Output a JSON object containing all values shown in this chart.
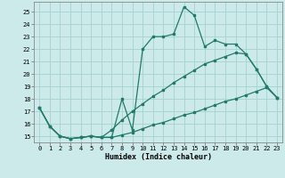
{
  "bg_color": "#cceaea",
  "line_color": "#217a6a",
  "grid_color": "#aad4d4",
  "xlabel": "Humidex (Indice chaleur)",
  "xlim": [
    -0.5,
    23.5
  ],
  "ylim": [
    14.5,
    25.8
  ],
  "yticks": [
    15,
    16,
    17,
    18,
    19,
    20,
    21,
    22,
    23,
    24,
    25
  ],
  "xticks": [
    0,
    1,
    2,
    3,
    4,
    5,
    6,
    7,
    8,
    9,
    10,
    11,
    12,
    13,
    14,
    15,
    16,
    17,
    18,
    19,
    20,
    21,
    22,
    23
  ],
  "line1_x": [
    0,
    1,
    2,
    3,
    4,
    5,
    6,
    7,
    8,
    9,
    10,
    11,
    12,
    13,
    14,
    15,
    16,
    17,
    18,
    19,
    20,
    21,
    22,
    23
  ],
  "line1_y": [
    17.3,
    15.8,
    15.0,
    14.8,
    14.9,
    15.0,
    14.9,
    14.9,
    18.0,
    15.5,
    22.0,
    23.0,
    23.0,
    23.2,
    25.4,
    24.7,
    22.2,
    22.7,
    22.4,
    22.4,
    21.6,
    20.4,
    19.0,
    18.1
  ],
  "line2_x": [
    0,
    1,
    2,
    3,
    4,
    5,
    6,
    7,
    8,
    9,
    10,
    11,
    12,
    13,
    14,
    15,
    16,
    17,
    18,
    19,
    20,
    21,
    22,
    23
  ],
  "line2_y": [
    17.3,
    15.8,
    15.0,
    14.8,
    14.9,
    15.0,
    14.9,
    15.5,
    16.3,
    17.0,
    17.6,
    18.2,
    18.7,
    19.3,
    19.8,
    20.3,
    20.8,
    21.1,
    21.4,
    21.7,
    21.6,
    20.4,
    19.0,
    18.1
  ],
  "line3_x": [
    0,
    1,
    2,
    3,
    4,
    5,
    6,
    7,
    8,
    9,
    10,
    11,
    12,
    13,
    14,
    15,
    16,
    17,
    18,
    19,
    20,
    21,
    22,
    23
  ],
  "line3_y": [
    17.3,
    15.8,
    15.0,
    14.8,
    14.9,
    15.0,
    14.9,
    14.9,
    15.1,
    15.3,
    15.6,
    15.9,
    16.1,
    16.4,
    16.7,
    16.9,
    17.2,
    17.5,
    17.8,
    18.0,
    18.3,
    18.6,
    18.9,
    18.1
  ]
}
